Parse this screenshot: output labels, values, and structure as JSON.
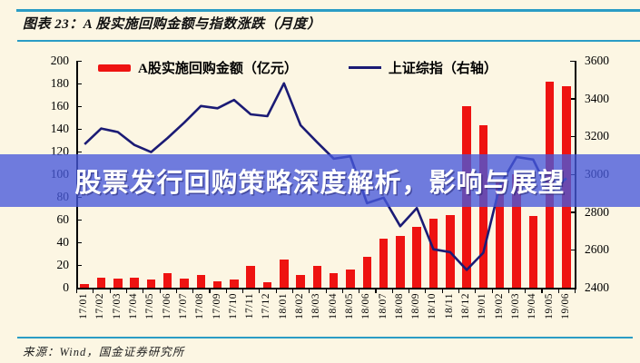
{
  "page": {
    "background": "#fcf6e3",
    "rule_color": "#2b9cc5",
    "axis_color": "#000000"
  },
  "header": {
    "title": "图表 23：A 股实施回购金额与指数涨跌（月度）"
  },
  "overlay": {
    "text": "股票发行回购策略深度解析，影响与展望",
    "band_color": "rgba(70,88,219,0.78)",
    "text_color": "#ffffff"
  },
  "footer": {
    "source": "来源：Wind，国金证券研究所"
  },
  "chart_data": {
    "type": "bar",
    "subtype": "bar+line combo, dual axis",
    "categories": [
      "17/01",
      "17/02",
      "17/03",
      "17/04",
      "17/05",
      "17/06",
      "17/07",
      "17/08",
      "17/09",
      "17/10",
      "17/11",
      "17/12",
      "18/01",
      "18/02",
      "18/03",
      "18/04",
      "18/05",
      "18/06",
      "18/07",
      "18/08",
      "18/09",
      "18/10",
      "18/11",
      "18/12",
      "19/01",
      "19/02",
      "19/03",
      "19/04",
      "19/05",
      "19/06"
    ],
    "series": [
      {
        "name": "A股实施回购金额（亿元）",
        "type": "bar",
        "axis": "left",
        "color": "#ee1311",
        "values": [
          3,
          9,
          8,
          9,
          7,
          13,
          8,
          11,
          6,
          7,
          19,
          5,
          25,
          11,
          19,
          13,
          16,
          27,
          43,
          46,
          54,
          61,
          64,
          160,
          143,
          95,
          100,
          63,
          182,
          178
        ]
      },
      {
        "name": "上证综指（右轴）",
        "type": "line",
        "axis": "right",
        "color": "#1b1b75",
        "values": [
          3159,
          3242,
          3223,
          3155,
          3117,
          3192,
          3273,
          3361,
          3349,
          3393,
          3317,
          3307,
          3481,
          3259,
          3169,
          3082,
          3095,
          2847,
          2876,
          2725,
          2821,
          2603,
          2588,
          2494,
          2585,
          2941,
          3091,
          3078,
          2899,
          2979
        ]
      }
    ],
    "left_axis": {
      "min": 0,
      "max": 200,
      "step": 20,
      "ticks": [
        0,
        20,
        40,
        60,
        80,
        100,
        120,
        140,
        160,
        180,
        200
      ]
    },
    "right_axis": {
      "min": 2400,
      "max": 3600,
      "step": 200,
      "ticks": [
        2400,
        2600,
        2800,
        3000,
        3200,
        3400,
        3600
      ]
    },
    "grid": false,
    "legend_position": "top-center"
  }
}
